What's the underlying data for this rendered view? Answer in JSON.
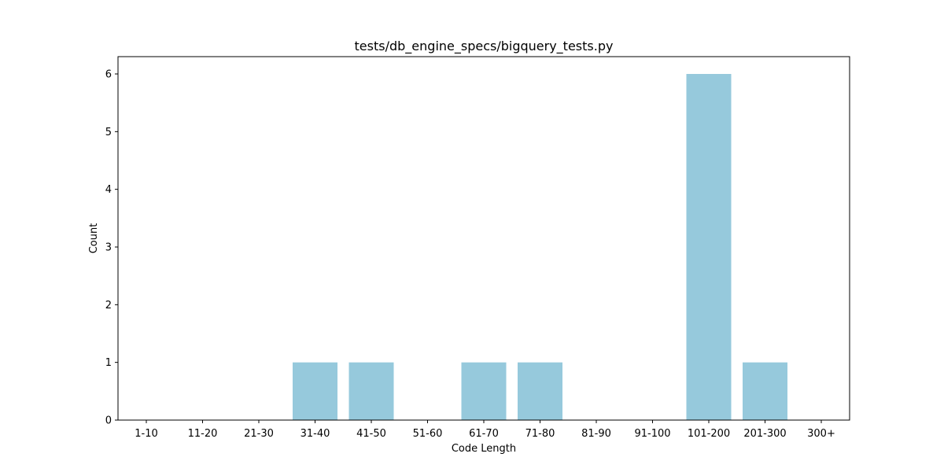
{
  "chart_data": {
    "type": "bar",
    "title": "tests/db_engine_specs/bigquery_tests.py",
    "xlabel": "Code Length",
    "ylabel": "Count",
    "categories": [
      "1-10",
      "11-20",
      "21-30",
      "31-40",
      "41-50",
      "51-60",
      "61-70",
      "71-80",
      "81-90",
      "91-100",
      "101-200",
      "201-300",
      "300+"
    ],
    "values": [
      0,
      0,
      0,
      1,
      1,
      0,
      1,
      1,
      0,
      0,
      6,
      1,
      0
    ],
    "ylim": [
      0,
      6.3
    ],
    "yticks": [
      0,
      1,
      2,
      3,
      4,
      5,
      6
    ],
    "grid": false,
    "bar_color": "#96c9dc"
  }
}
